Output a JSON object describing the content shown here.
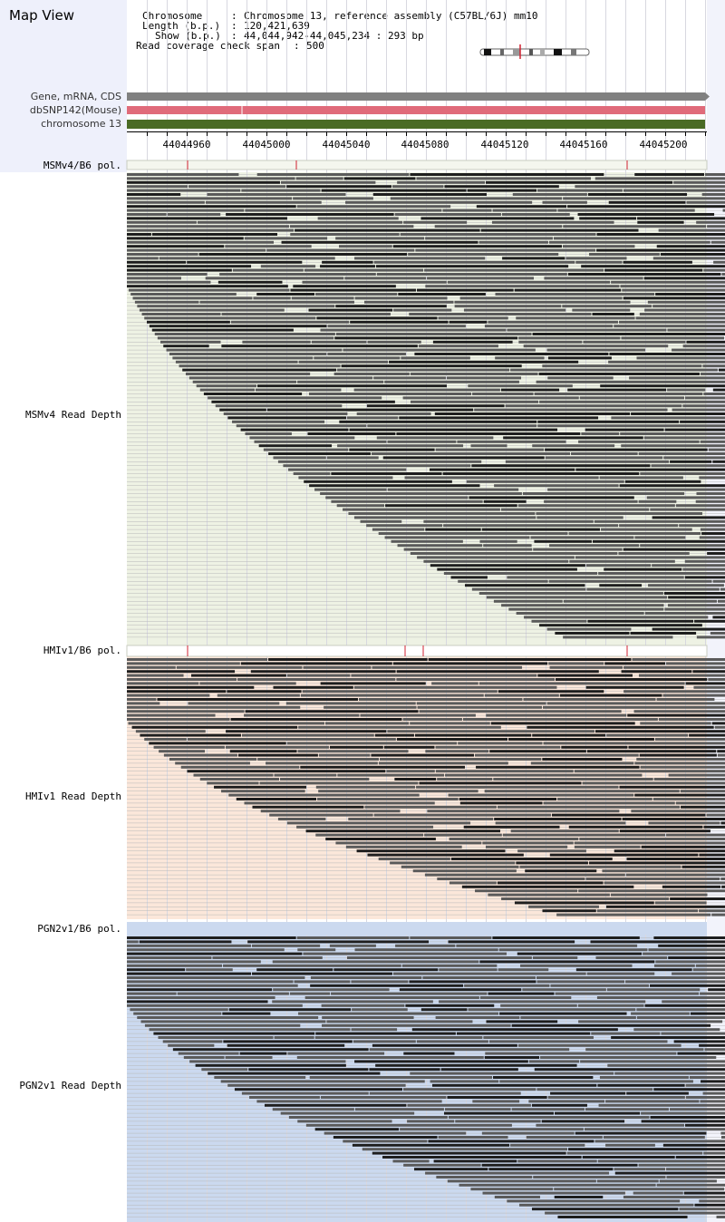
{
  "page_title": "Map View",
  "info": {
    "chromosome_key": "Chromosome",
    "chromosome_value": "Chromosome 13, reference assembly (C57BL/6J) mm10",
    "length_key": "Length (b.p.)",
    "length_value": "120,421,639",
    "show_key": "Show (b.p.)",
    "show_value": "44,044,942-44,045,234 : 293 bp",
    "span_key": "Read coverage check span",
    "span_value": "500",
    "sep": ":"
  },
  "feature_tracks": {
    "gene_label": "Gene, mRNA, CDS",
    "snp_label": "dbSNP142(Mouse)",
    "chrom_label": "chromosome 13"
  },
  "axis": {
    "ticks": [
      "44044960",
      "44045000",
      "44045040",
      "44045080",
      "44045120",
      "44045160",
      "44045200"
    ]
  },
  "sections": [
    {
      "pol_label": "MSMv4/B6 pol.",
      "depth_label": "MSMv4 Read Depth"
    },
    {
      "pol_label": "HMIv1/B6 pol.",
      "depth_label": "HMIv1 Read Depth"
    },
    {
      "pol_label": "PGN2v1/B6 pol.",
      "depth_label": "PGN2v1 Read Depth"
    }
  ],
  "colors": {
    "left_panel": "#eef0fb",
    "gene_track": "#808080",
    "snp_track": "#e06b7a",
    "chrom_track": "#4a6b25",
    "msm_bg": "#eef2e4",
    "hmi_bg": "#fbe7da",
    "pgn_bg": "#cbd9ef",
    "read_gray": "#5a5a5a",
    "read_dark": "#1e1e1e",
    "snp_mark": "#d02030"
  }
}
